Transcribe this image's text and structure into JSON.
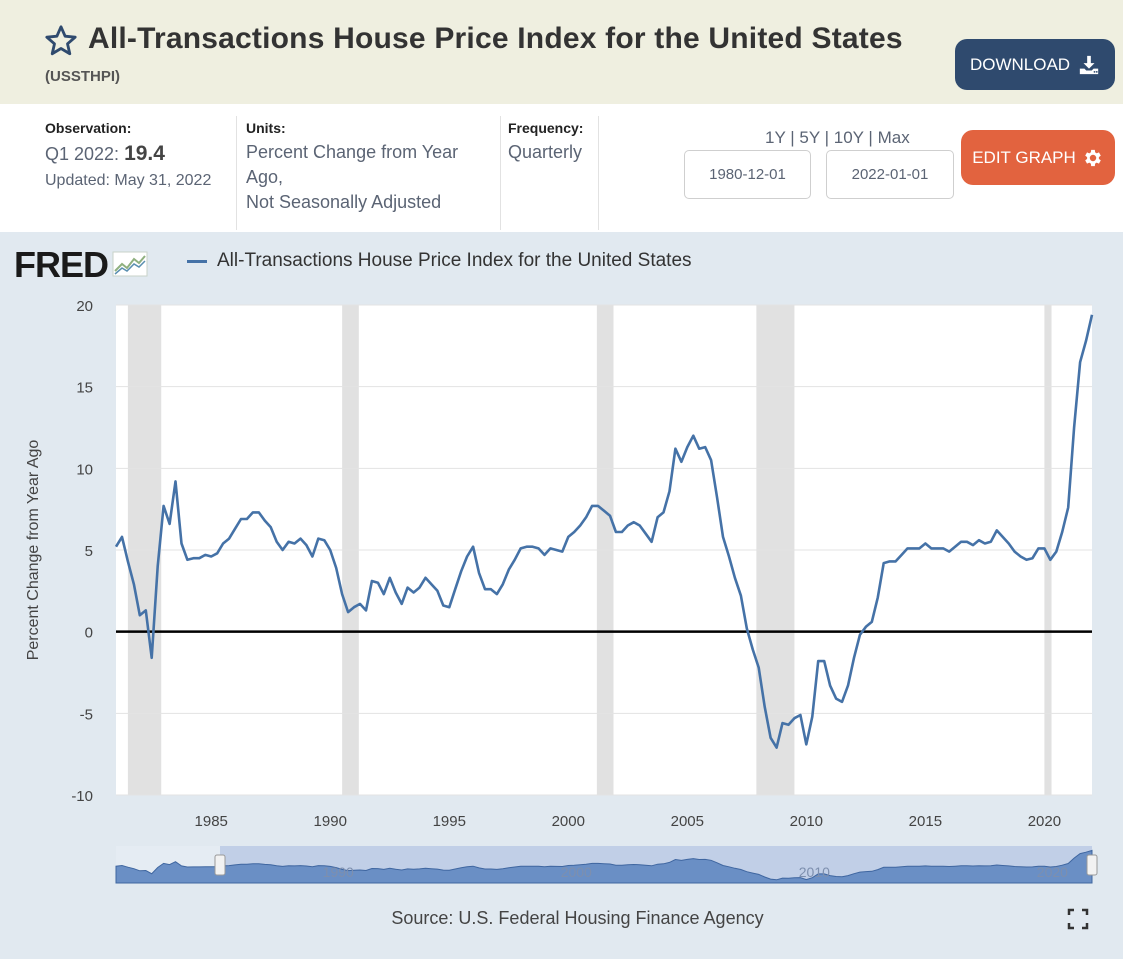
{
  "header": {
    "title": "All-Transactions House Price Index for the United States",
    "series_id": "(USSTHPI)",
    "download_label": "DOWNLOAD"
  },
  "meta": {
    "observation_label": "Observation:",
    "observation_period": "Q1 2022:",
    "observation_value": "19.4",
    "updated": "Updated: May 31, 2022",
    "units_label": "Units:",
    "units_line1": "Percent Change from Year",
    "units_line2": "Ago,",
    "units_line3": "Not Seasonally Adjusted",
    "frequency_label": "Frequency:",
    "frequency_value": "Quarterly"
  },
  "range": {
    "links": [
      "1Y",
      "5Y",
      "10Y",
      "Max"
    ],
    "start_date": "1980-12-01",
    "end_date": "2022-01-01",
    "edit_label": "EDIT GRAPH"
  },
  "chart": {
    "logo_text": "FRED",
    "source": "Source: U.S. Federal Housing Finance Agency"
  },
  "colors": {
    "series": "#4572a7",
    "download": "#2f4a6e",
    "edit": "#e2633f",
    "panel": "#e1e9f0"
  },
  "chart_data": {
    "type": "line",
    "title": "All-Transactions House Price Index for the United States",
    "xlabel": "",
    "ylabel": "Percent Change from Year Ago",
    "xlim": [
      1981.0,
      2022.0
    ],
    "ylim": [
      -10,
      20
    ],
    "yticks": [
      -10,
      -5,
      0,
      5,
      10,
      15,
      20
    ],
    "xticks": [
      1985,
      1990,
      1995,
      2000,
      2005,
      2010,
      2015,
      2020
    ],
    "legend": "All-Transactions House Price Index for the United States",
    "recessions": [
      [
        1981.5,
        1982.9
      ],
      [
        1990.5,
        1991.2
      ],
      [
        2001.2,
        2001.9
      ],
      [
        2007.9,
        2009.5
      ],
      [
        2020.0,
        2020.3
      ]
    ],
    "series": [
      {
        "name": "All-Transactions House Price Index for the United States",
        "x": [
          1981.0,
          1981.25,
          1981.5,
          1981.75,
          1982.0,
          1982.25,
          1982.5,
          1982.75,
          1983.0,
          1983.25,
          1983.5,
          1983.75,
          1984.0,
          1984.25,
          1984.5,
          1984.75,
          1985.0,
          1985.25,
          1985.5,
          1985.75,
          1986.0,
          1986.25,
          1986.5,
          1986.75,
          1987.0,
          1987.25,
          1987.5,
          1987.75,
          1988.0,
          1988.25,
          1988.5,
          1988.75,
          1989.0,
          1989.25,
          1989.5,
          1989.75,
          1990.0,
          1990.25,
          1990.5,
          1990.75,
          1991.0,
          1991.25,
          1991.5,
          1991.75,
          1992.0,
          1992.25,
          1992.5,
          1992.75,
          1993.0,
          1993.25,
          1993.5,
          1993.75,
          1994.0,
          1994.25,
          1994.5,
          1994.75,
          1995.0,
          1995.25,
          1995.5,
          1995.75,
          1996.0,
          1996.25,
          1996.5,
          1996.75,
          1997.0,
          1997.25,
          1997.5,
          1997.75,
          1998.0,
          1998.25,
          1998.5,
          1998.75,
          1999.0,
          1999.25,
          1999.5,
          1999.75,
          2000.0,
          2000.25,
          2000.5,
          2000.75,
          2001.0,
          2001.25,
          2001.5,
          2001.75,
          2002.0,
          2002.25,
          2002.5,
          2002.75,
          2003.0,
          2003.25,
          2003.5,
          2003.75,
          2004.0,
          2004.25,
          2004.5,
          2004.75,
          2005.0,
          2005.25,
          2005.5,
          2005.75,
          2006.0,
          2006.25,
          2006.5,
          2006.75,
          2007.0,
          2007.25,
          2007.5,
          2007.75,
          2008.0,
          2008.25,
          2008.5,
          2008.75,
          2009.0,
          2009.25,
          2009.5,
          2009.75,
          2010.0,
          2010.25,
          2010.5,
          2010.75,
          2011.0,
          2011.25,
          2011.5,
          2011.75,
          2012.0,
          2012.25,
          2012.5,
          2012.75,
          2013.0,
          2013.25,
          2013.5,
          2013.75,
          2014.0,
          2014.25,
          2014.5,
          2014.75,
          2015.0,
          2015.25,
          2015.5,
          2015.75,
          2016.0,
          2016.25,
          2016.5,
          2016.75,
          2017.0,
          2017.25,
          2017.5,
          2017.75,
          2018.0,
          2018.25,
          2018.5,
          2018.75,
          2019.0,
          2019.25,
          2019.5,
          2019.75,
          2020.0,
          2020.25,
          2020.5,
          2020.75,
          2021.0,
          2021.25,
          2021.5,
          2021.75,
          2022.0
        ],
        "values": [
          5.2,
          5.8,
          4.3,
          2.9,
          1.0,
          1.3,
          -1.6,
          4.0,
          7.7,
          6.6,
          9.2,
          5.4,
          4.4,
          4.5,
          4.5,
          4.7,
          4.6,
          4.8,
          5.4,
          5.7,
          6.3,
          6.9,
          6.9,
          7.3,
          7.3,
          6.8,
          6.4,
          5.5,
          5.0,
          5.5,
          5.4,
          5.7,
          5.3,
          4.6,
          5.7,
          5.6,
          5.0,
          3.9,
          2.3,
          1.2,
          1.5,
          1.7,
          1.3,
          3.1,
          3.0,
          2.3,
          3.3,
          2.4,
          1.7,
          2.7,
          2.4,
          2.7,
          3.3,
          2.9,
          2.5,
          1.6,
          1.5,
          2.6,
          3.7,
          4.6,
          5.2,
          3.6,
          2.6,
          2.6,
          2.3,
          2.9,
          3.8,
          4.4,
          5.1,
          5.2,
          5.2,
          5.1,
          4.7,
          5.1,
          5.0,
          4.9,
          5.8,
          6.1,
          6.5,
          7.0,
          7.7,
          7.7,
          7.4,
          7.1,
          6.1,
          6.1,
          6.5,
          6.7,
          6.5,
          6.0,
          5.5,
          7.0,
          7.3,
          8.6,
          11.2,
          10.4,
          11.3,
          12.0,
          11.2,
          11.3,
          10.5,
          8.2,
          5.8,
          4.6,
          3.3,
          2.2,
          0.2,
          -1.1,
          -2.2,
          -4.6,
          -6.5,
          -7.1,
          -5.6,
          -5.7,
          -5.3,
          -5.1,
          -6.9,
          -5.2,
          -1.8,
          -1.8,
          -3.3,
          -4.1,
          -4.3,
          -3.3,
          -1.6,
          -0.2,
          0.3,
          0.6,
          2.1,
          4.2,
          4.3,
          4.3,
          4.7,
          5.1,
          5.1,
          5.1,
          5.4,
          5.1,
          5.1,
          5.1,
          4.9,
          5.2,
          5.5,
          5.5,
          5.3,
          5.6,
          5.4,
          5.5,
          6.2,
          5.8,
          5.4,
          4.9,
          4.6,
          4.4,
          4.5,
          5.1,
          5.1,
          4.4,
          4.9,
          6.1,
          7.6,
          12.5,
          16.5,
          17.8,
          19.4
        ]
      }
    ]
  }
}
